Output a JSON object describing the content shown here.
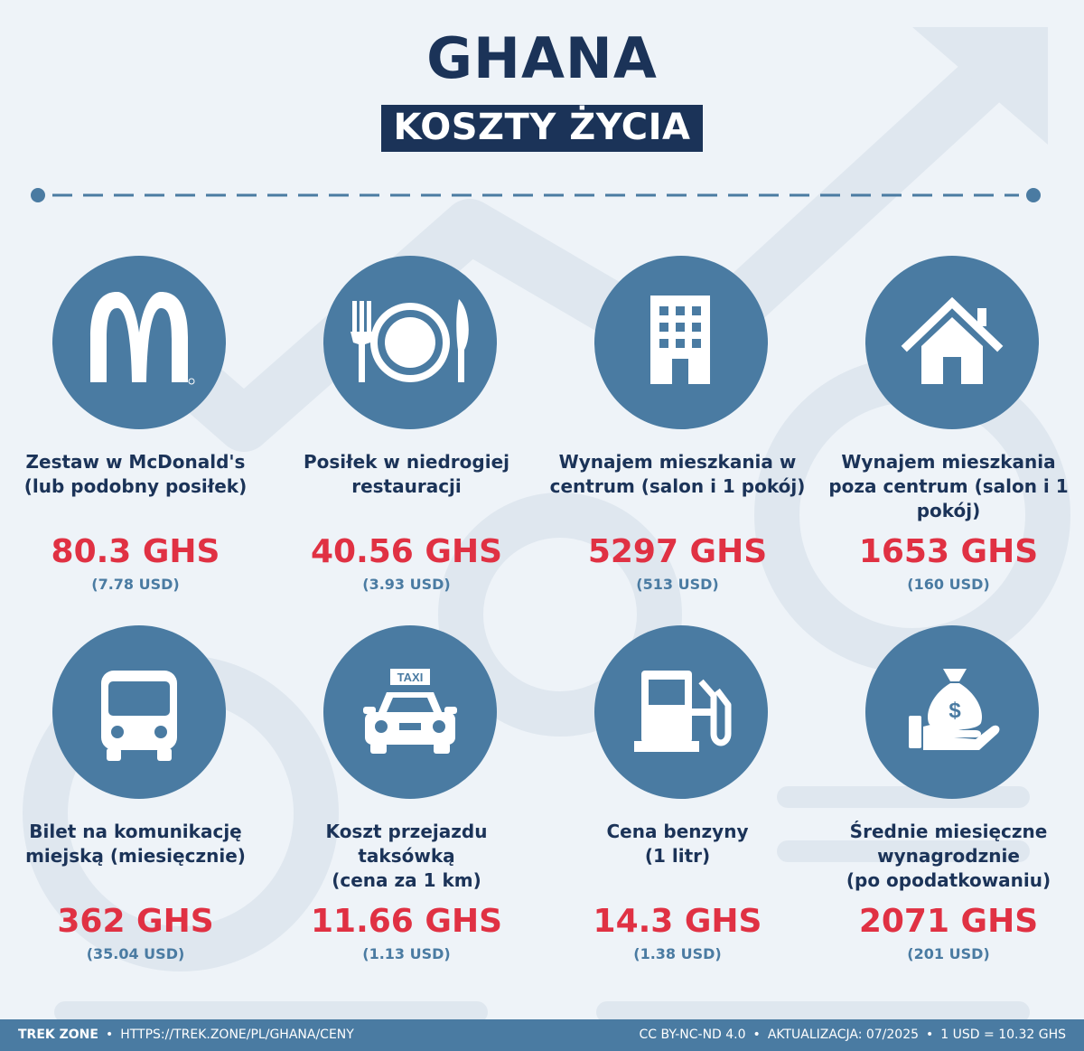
{
  "header": {
    "title": "GHANA",
    "subtitle": "KOSZTY ŻYCIA"
  },
  "colors": {
    "navy": "#1b3358",
    "circle_blue": "#4a7ba2",
    "price_red": "#e03143",
    "background": "#eef3f8"
  },
  "items": [
    {
      "icon": "mcdonalds-logo-icon",
      "label_lines": [
        "Zestaw w McDonald's",
        "(lub podobny posiłek)"
      ],
      "price": "80.3 GHS",
      "usd": "(7.78 USD)"
    },
    {
      "icon": "fork-plate-knife-icon",
      "label_lines": [
        "Posiłek w niedrogiej",
        "restauracji"
      ],
      "price": "40.56 GHS",
      "usd": "(3.93 USD)"
    },
    {
      "icon": "office-building-icon",
      "label_lines": [
        "Wynajem mieszkania w",
        "centrum (salon i 1 pokój)"
      ],
      "price": "5297 GHS",
      "usd": "(513 USD)"
    },
    {
      "icon": "house-icon",
      "label_lines": [
        "Wynajem mieszkania",
        "poza centrum (salon i 1",
        "pokój)"
      ],
      "price": "1653 GHS",
      "usd": "(160 USD)"
    },
    {
      "icon": "bus-icon",
      "label_lines": [
        "Bilet na komunikację",
        "miejską (miesięcznie)"
      ],
      "price": "362 GHS",
      "usd": "(35.04 USD)"
    },
    {
      "icon": "taxi-icon",
      "label_lines": [
        "Koszt przejazdu",
        "taksówką",
        "(cena za 1 km)"
      ],
      "price": "11.66 GHS",
      "usd": "(1.13 USD)"
    },
    {
      "icon": "fuel-pump-icon",
      "label_lines": [
        "Cena benzyny",
        "(1 litr)"
      ],
      "price": "14.3 GHS",
      "usd": "(1.38 USD)"
    },
    {
      "icon": "money-bag-hand-icon",
      "label_lines": [
        "Średnie miesięczne",
        "wynagrodznie",
        "(po opodatkowaniu)"
      ],
      "price": "2071 GHS",
      "usd": "(201 USD)"
    }
  ],
  "taxi_sign": "TAXI",
  "footer": {
    "brand": "TREK ZONE",
    "url": "HTTPS://TREK.ZONE/PL/GHANA/CENY",
    "license": "CC BY-NC-ND 4.0",
    "updated": "AKTUALIZACJA: 07/2025",
    "rate": "1 USD = 10.32 GHS"
  }
}
